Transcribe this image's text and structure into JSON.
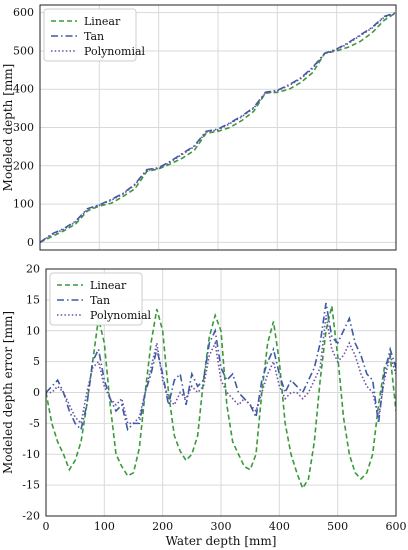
{
  "chart_data": [
    {
      "type": "line",
      "title": "",
      "xlabel": "",
      "ylabel": "Modeled depth [mm]",
      "xlim": [
        0,
        600
      ],
      "ylim": [
        -20,
        620
      ],
      "xticks": [
        0,
        100,
        200,
        300,
        400,
        500,
        600
      ],
      "xtick_labels_shown": false,
      "yticks": [
        0,
        100,
        200,
        300,
        400,
        500,
        600
      ],
      "grid": true,
      "legend": "top-left",
      "legend_labels": [
        "Linear",
        "Tan",
        "Polynomial"
      ],
      "series": [
        {
          "name": "Linear",
          "color": "#3a9a3a",
          "dash": "dashed",
          "x": [
            0,
            20,
            40,
            60,
            80,
            100,
            120,
            140,
            160,
            180,
            200,
            220,
            240,
            260,
            280,
            300,
            320,
            340,
            360,
            380,
            400,
            420,
            440,
            460,
            480,
            500,
            520,
            540,
            560,
            580,
            600
          ],
          "y": [
            0,
            15,
            30,
            48,
            82,
            95,
            102,
            120,
            140,
            185,
            192,
            205,
            220,
            240,
            285,
            290,
            300,
            318,
            342,
            390,
            392,
            400,
            418,
            444,
            494,
            500,
            510,
            525,
            548,
            580,
            600
          ]
        },
        {
          "name": "Tan",
          "color": "#3b5ba5",
          "dash": "dashdot",
          "x": [
            0,
            20,
            40,
            60,
            80,
            100,
            120,
            140,
            160,
            180,
            200,
            220,
            240,
            260,
            280,
            300,
            320,
            340,
            360,
            380,
            400,
            420,
            440,
            460,
            480,
            500,
            520,
            540,
            560,
            580,
            600
          ],
          "y": [
            0,
            22,
            36,
            55,
            88,
            98,
            112,
            128,
            152,
            190,
            195,
            212,
            232,
            252,
            290,
            296,
            312,
            330,
            352,
            392,
            397,
            412,
            430,
            458,
            494,
            505,
            522,
            542,
            562,
            590,
            600
          ]
        },
        {
          "name": "Polynomial",
          "color": "#6a4fa3",
          "dash": "dotted",
          "x": [
            0,
            20,
            40,
            60,
            80,
            100,
            120,
            140,
            160,
            180,
            200,
            220,
            240,
            260,
            280,
            300,
            320,
            340,
            360,
            380,
            400,
            420,
            440,
            460,
            480,
            500,
            520,
            540,
            560,
            580,
            600
          ],
          "y": [
            0,
            20,
            34,
            53,
            86,
            97,
            110,
            126,
            150,
            188,
            193,
            210,
            230,
            250,
            288,
            294,
            310,
            328,
            350,
            390,
            396,
            410,
            428,
            455,
            493,
            503,
            520,
            540,
            560,
            588,
            598
          ]
        }
      ]
    },
    {
      "type": "line",
      "title": "",
      "xlabel": "Water depth [mm]",
      "ylabel": "Modeled depth error [mm]",
      "xlim": [
        0,
        600
      ],
      "ylim": [
        -20,
        20
      ],
      "xticks": [
        0,
        100,
        200,
        300,
        400,
        500,
        600
      ],
      "yticks": [
        -20,
        -15,
        -10,
        -5,
        0,
        5,
        10,
        15,
        20
      ],
      "grid": true,
      "legend": "top-left",
      "legend_labels": [
        "Linear",
        "Tan",
        "Polynomial"
      ],
      "series": [
        {
          "name": "Linear",
          "color": "#3a9a3a",
          "dash": "dashed",
          "x": [
            0,
            10,
            20,
            30,
            40,
            50,
            60,
            70,
            80,
            90,
            100,
            110,
            120,
            130,
            140,
            150,
            160,
            170,
            180,
            190,
            200,
            210,
            220,
            230,
            240,
            250,
            260,
            270,
            280,
            290,
            300,
            310,
            320,
            330,
            340,
            350,
            360,
            370,
            380,
            390,
            400,
            410,
            420,
            430,
            440,
            450,
            460,
            470,
            480,
            490,
            500,
            510,
            520,
            530,
            540,
            550,
            560,
            570,
            580,
            590,
            600
          ],
          "y": [
            0,
            -5,
            -8,
            -10,
            -12.5,
            -11,
            -8,
            -2,
            5,
            12,
            8,
            -2,
            -10,
            -12,
            -13.5,
            -13,
            -9,
            0,
            8,
            13.5,
            10,
            0,
            -7,
            -9.5,
            -11,
            -10,
            -7,
            2,
            9,
            12.5,
            10,
            -2,
            -8,
            -10,
            -12,
            -12.5,
            -10,
            0,
            8,
            11.5,
            5,
            -5,
            -10,
            -13,
            -15.5,
            -14,
            -8,
            2,
            10,
            14,
            6,
            -4,
            -10,
            -13,
            -14,
            -13,
            -10,
            -2,
            4,
            6,
            -3
          ]
        },
        {
          "name": "Tan",
          "color": "#3b5ba5",
          "dash": "dashdot",
          "x": [
            0,
            10,
            20,
            30,
            40,
            50,
            60,
            70,
            80,
            90,
            100,
            110,
            120,
            130,
            140,
            150,
            160,
            170,
            180,
            190,
            200,
            210,
            220,
            230,
            240,
            250,
            260,
            270,
            280,
            290,
            300,
            310,
            320,
            330,
            340,
            350,
            360,
            370,
            380,
            390,
            400,
            410,
            420,
            430,
            440,
            450,
            460,
            470,
            480,
            490,
            500,
            510,
            520,
            530,
            540,
            550,
            560,
            570,
            580,
            590,
            600
          ],
          "y": [
            0,
            1,
            2,
            0,
            -3,
            -5,
            -6,
            -2,
            5,
            7,
            2,
            -1,
            -3,
            -2,
            -6,
            -5,
            -5,
            0,
            3,
            7,
            3,
            -2,
            2,
            3,
            -2,
            3,
            1,
            2,
            8,
            10,
            4,
            2,
            3,
            0,
            -1,
            -2,
            -4,
            2,
            5,
            7,
            3,
            0,
            2,
            1,
            0,
            2,
            4,
            8,
            14.5,
            9,
            8,
            10,
            12,
            8,
            6,
            3,
            2,
            -5,
            3,
            7,
            4
          ]
        },
        {
          "name": "Polynomial",
          "color": "#6a4fa3",
          "dash": "dotted",
          "x": [
            0,
            10,
            20,
            30,
            40,
            50,
            60,
            70,
            80,
            90,
            100,
            110,
            120,
            130,
            140,
            150,
            160,
            170,
            180,
            190,
            200,
            210,
            220,
            230,
            240,
            250,
            260,
            270,
            280,
            290,
            300,
            310,
            320,
            330,
            340,
            350,
            360,
            370,
            380,
            390,
            400,
            410,
            420,
            430,
            440,
            450,
            460,
            470,
            480,
            490,
            500,
            510,
            520,
            530,
            540,
            550,
            560,
            570,
            580,
            590,
            600
          ],
          "y": [
            0,
            0,
            1,
            0,
            -2,
            -4,
            -5,
            0,
            4,
            5,
            1,
            -1,
            -2,
            -1,
            -5,
            -5,
            -4,
            0,
            4,
            8,
            2,
            -1,
            -2,
            0,
            -1,
            1,
            0,
            1,
            6,
            8,
            2,
            0,
            -1,
            -2,
            -1,
            -2,
            -3,
            0,
            3,
            5,
            1,
            -1,
            0,
            0,
            -1,
            0,
            2,
            4,
            12.5,
            7,
            5,
            6,
            8,
            6,
            3,
            1,
            0,
            -4,
            2,
            6,
            3
          ]
        }
      ]
    }
  ]
}
